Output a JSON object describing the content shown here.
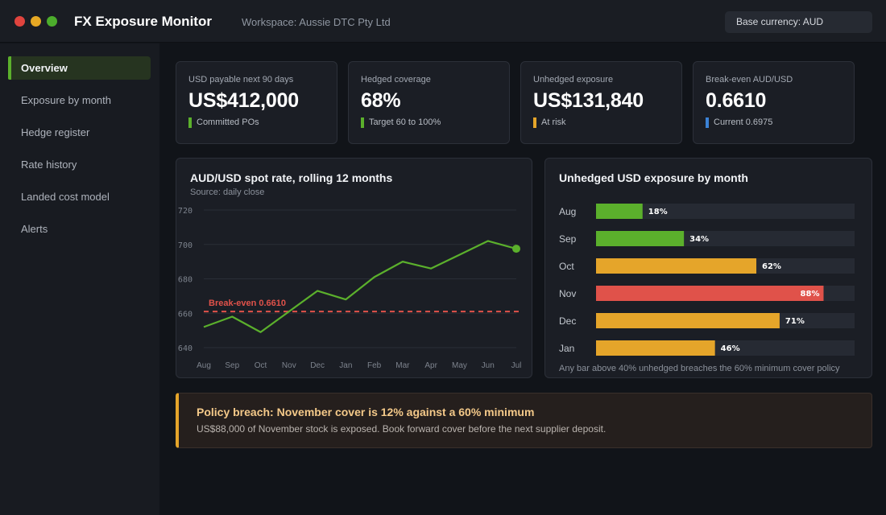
{
  "window": {
    "title": "FX Exposure Monitor",
    "workspace": "Workspace: Aussie DTC Pty Ltd",
    "base_currency": "Base currency: AUD"
  },
  "sidebar": {
    "items": [
      {
        "label": "Overview",
        "active": true
      },
      {
        "label": "Exposure by month",
        "active": false
      },
      {
        "label": "Hedge register",
        "active": false
      },
      {
        "label": "Rate history",
        "active": false
      },
      {
        "label": "Landed cost model",
        "active": false
      },
      {
        "label": "Alerts",
        "active": false
      }
    ]
  },
  "kpis": [
    {
      "label": "USD payable next 90 days",
      "value": "US$412,000",
      "note": "Committed POs",
      "color": "#5bb02c"
    },
    {
      "label": "Hedged coverage",
      "value": "68%",
      "note": "Target 60 to 100%",
      "color": "#5bb02c"
    },
    {
      "label": "Unhedged exposure",
      "value": "US$131,840",
      "note": "At risk",
      "color": "#e5a52a"
    },
    {
      "label": "Break-even AUD/USD",
      "value": "0.6610",
      "note": "Current 0.6975",
      "color": "#3b82d6"
    }
  ],
  "line_panel": {
    "title": "AUD/USD spot rate, rolling 12 months",
    "subtitle": "Source: daily close",
    "break_even_label": "Break-even 0.6610"
  },
  "bar_panel": {
    "title": "Unhedged USD exposure by month",
    "footnote": "Any bar above 40% unhedged breaches the 60% minimum cover policy"
  },
  "alert": {
    "title": "Policy breach: November cover is 12% against a 60% minimum",
    "text": "US$88,000 of November stock is exposed. Book forward cover before the next supplier deposit."
  },
  "colors": {
    "green": "#5bb02c",
    "amber": "#e5a52a",
    "red": "#e0524a",
    "blue": "#3b82d6"
  },
  "chart_data": [
    {
      "type": "line",
      "title": "AUD/USD spot rate, rolling 12 months",
      "subtitle": "Source: daily close",
      "x": [
        "Aug",
        "Sep",
        "Oct",
        "Nov",
        "Dec",
        "Jan",
        "Feb",
        "Mar",
        "Apr",
        "May",
        "Jun",
        "Jul"
      ],
      "values": [
        0.652,
        0.658,
        0.649,
        0.661,
        0.673,
        0.668,
        0.681,
        0.69,
        0.686,
        0.694,
        0.702,
        0.6975
      ],
      "ylim": [
        0.64,
        0.72
      ],
      "yticks": [
        "0.720",
        "0.700",
        "0.680",
        "0.660",
        "0.640"
      ],
      "ytick_values": [
        0.72,
        0.7,
        0.68,
        0.66,
        0.64
      ],
      "reference_line": {
        "value": 0.661,
        "label": "Break-even 0.6610"
      },
      "grid": true
    },
    {
      "type": "bar",
      "orientation": "horizontal",
      "title": "Unhedged USD exposure by month",
      "categories": [
        "Aug",
        "Sep",
        "Oct",
        "Nov",
        "Dec",
        "Jan"
      ],
      "values": [
        18,
        34,
        62,
        88,
        71,
        46
      ],
      "labels": [
        "18%",
        "34%",
        "62%",
        "88%",
        "71%",
        "46%"
      ],
      "status": [
        "green",
        "green",
        "amber",
        "red",
        "amber",
        "amber"
      ],
      "xlim": [
        0,
        100
      ]
    }
  ]
}
